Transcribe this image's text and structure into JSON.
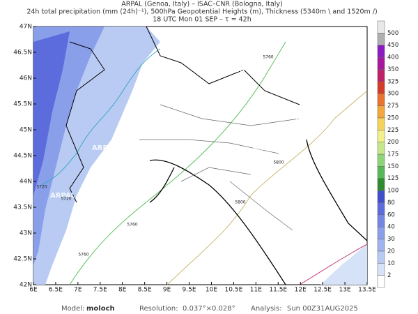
{
  "header": {
    "line1": "ARPAL (Genoa, Italy)  –  ISAC–CNR (Bologna, Italy)",
    "line2": "24h total precipitation (mm (24h)⁻¹), 500hPa Geopotential Heights (m), Thickness (5340m \\ and 1520m /)",
    "line3": "18 UTC Mon 01 SEP   –   τ = 42h"
  },
  "map": {
    "lon_labels": [
      "6E",
      "6.5E",
      "7E",
      "7.5E",
      "8E",
      "8.5E",
      "9E",
      "9.5E",
      "10E",
      "10.5E",
      "11E",
      "11.5E",
      "12E",
      "12.5E",
      "13E",
      "13.5E"
    ],
    "lat_labels": [
      "42N",
      "42.5N",
      "43N",
      "43.5N",
      "44N",
      "44.5N",
      "45N",
      "45.5N",
      "46N",
      "46.5N",
      "47N"
    ],
    "watermark": "ARPAL",
    "contour_labels": [
      "5760",
      "5760",
      "5760",
      "5800",
      "5800",
      "5720",
      "5720"
    ]
  },
  "colorbar": {
    "labels": [
      "2",
      "10",
      "20",
      "30",
      "40",
      "60",
      "80",
      "100",
      "125",
      "150",
      "175",
      "200",
      "225",
      "250",
      "275",
      "300",
      "325",
      "350",
      "400",
      "450",
      "500"
    ],
    "colors": [
      "#ffffff",
      "#d6e2f7",
      "#b9cbf3",
      "#9fb4ee",
      "#8a9fea",
      "#7486e4",
      "#5c6cdc",
      "#3f4fcc",
      "#2e8b2e",
      "#58b858",
      "#8fd47a",
      "#c6e88a",
      "#f2f08a",
      "#f5d25a",
      "#f2a63c",
      "#e8742e",
      "#d43c2a",
      "#c0206a",
      "#a8189c",
      "#8c1cc0",
      "#b0b0b0",
      "#e8e8e8"
    ]
  },
  "footer": {
    "model_label": "Model:",
    "model": "moloch",
    "res_label": "Resolution:",
    "res": "0.037°×0.028°",
    "analysis_label": "Analysis:",
    "analysis": "Sun 00Z31AUG2025"
  }
}
